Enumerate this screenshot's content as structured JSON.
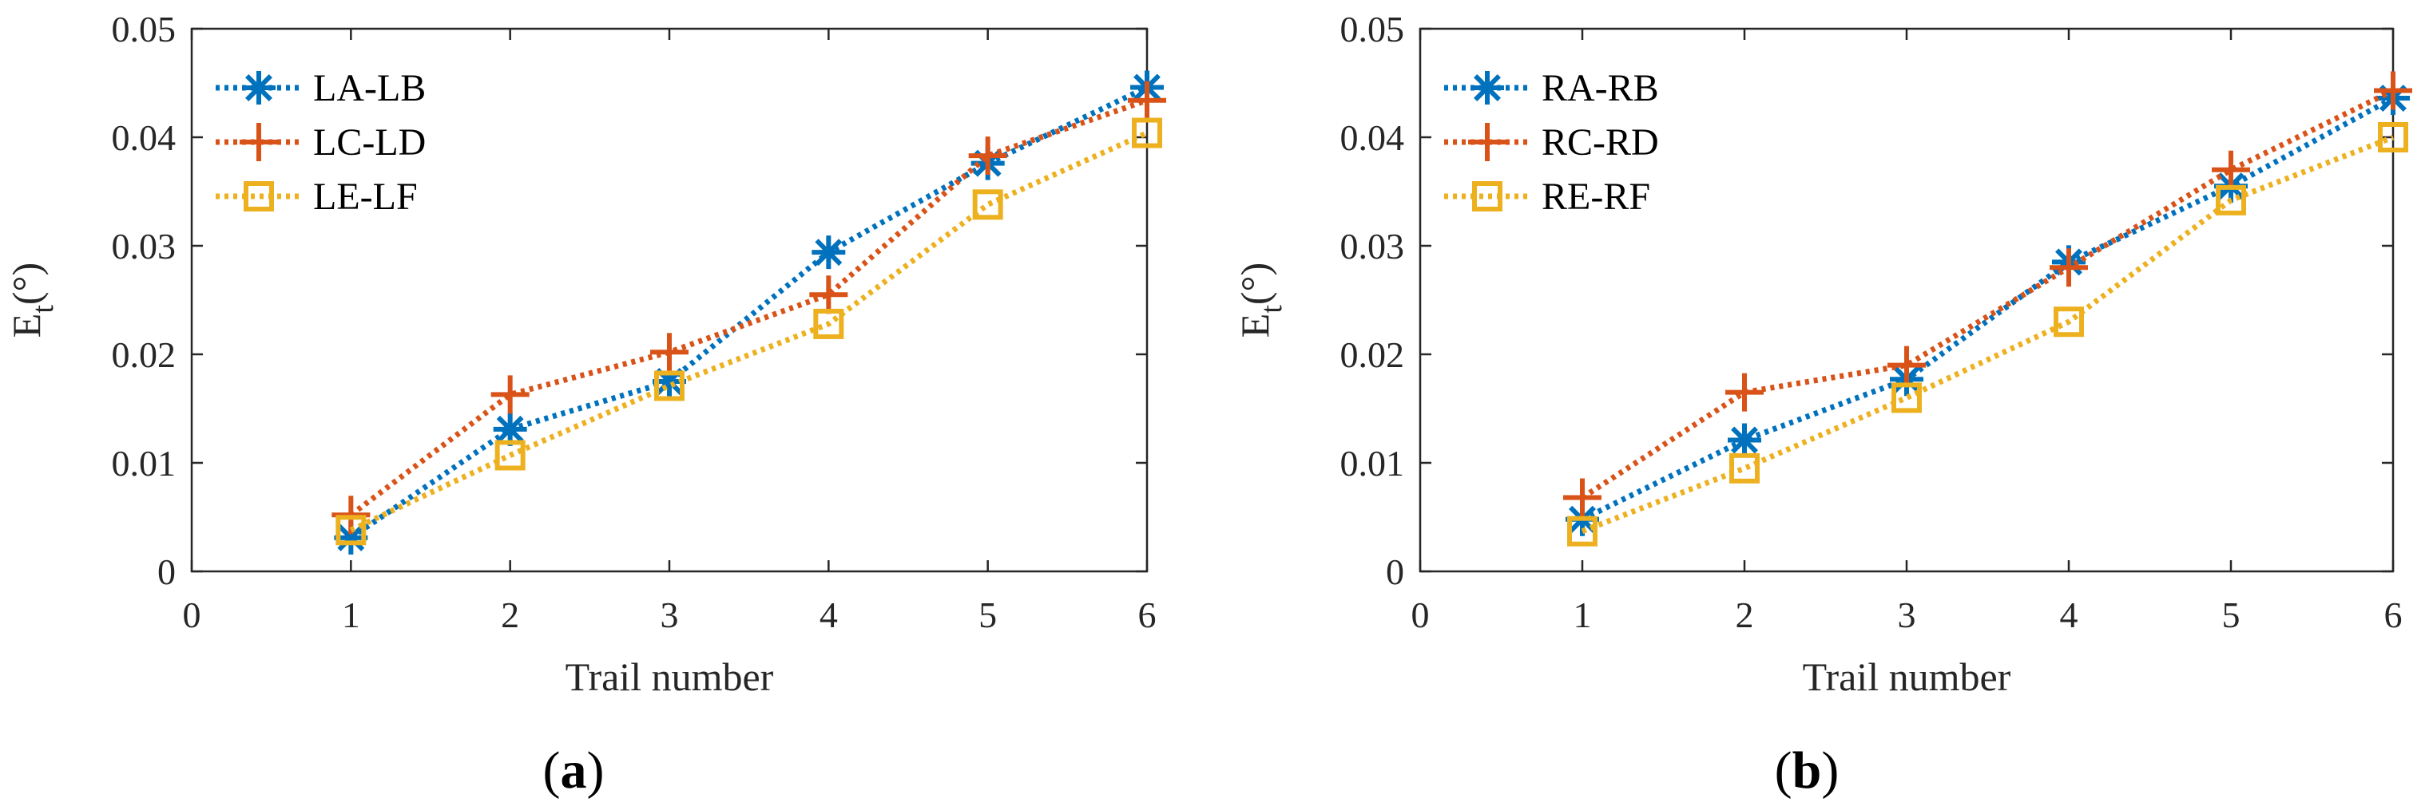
{
  "chart_data": [
    {
      "type": "line",
      "panel_label": {
        "open": "(",
        "letter": "a",
        "close": ")"
      },
      "xlabel": "Trail number",
      "ylabel": {
        "main": "E",
        "sub": "t",
        "suffix": "(°)"
      },
      "xlim": [
        0,
        6
      ],
      "ylim": [
        0,
        0.05
      ],
      "xticks": [
        0,
        1,
        2,
        3,
        4,
        5,
        6
      ],
      "xtick_labels": [
        "0",
        "1",
        "2",
        "3",
        "4",
        "5",
        "6"
      ],
      "yticks": [
        0,
        0.01,
        0.02,
        0.03,
        0.04,
        0.05
      ],
      "ytick_labels": [
        "0",
        "0.01",
        "0.02",
        "0.03",
        "0.04",
        "0.05"
      ],
      "legend_position": "top-left",
      "x": [
        1,
        2,
        3,
        4,
        5,
        6
      ],
      "series": [
        {
          "name": "LA-LB",
          "marker": "asterisk",
          "color": "#0072BD",
          "values": [
            0.0031,
            0.0131,
            0.0175,
            0.0294,
            0.0376,
            0.0446
          ]
        },
        {
          "name": "LC-LD",
          "marker": "plus",
          "color": "#D95319",
          "values": [
            0.0052,
            0.0163,
            0.0202,
            0.0255,
            0.0383,
            0.0434
          ]
        },
        {
          "name": "LE-LF",
          "marker": "square",
          "color": "#EDB120",
          "values": [
            0.0038,
            0.0107,
            0.0171,
            0.0228,
            0.0338,
            0.0404
          ]
        }
      ]
    },
    {
      "type": "line",
      "panel_label": {
        "open": "(",
        "letter": "b",
        "close": ")"
      },
      "xlabel": "Trail number",
      "ylabel": {
        "main": "E",
        "sub": "t",
        "suffix": "(°)"
      },
      "xlim": [
        0,
        6
      ],
      "ylim": [
        0,
        0.05
      ],
      "xticks": [
        0,
        1,
        2,
        3,
        4,
        5,
        6
      ],
      "xtick_labels": [
        "0",
        "1",
        "2",
        "3",
        "4",
        "5",
        "6"
      ],
      "yticks": [
        0,
        0.01,
        0.02,
        0.03,
        0.04,
        0.05
      ],
      "ytick_labels": [
        "0",
        "0.01",
        "0.02",
        "0.03",
        "0.04",
        "0.05"
      ],
      "legend_position": "top-left",
      "x": [
        1,
        2,
        3,
        4,
        5,
        6
      ],
      "series": [
        {
          "name": "RA-RB",
          "marker": "asterisk",
          "color": "#0072BD",
          "values": [
            0.0048,
            0.0121,
            0.0177,
            0.0285,
            0.0355,
            0.0436
          ]
        },
        {
          "name": "RC-RD",
          "marker": "plus",
          "color": "#D95319",
          "values": [
            0.0068,
            0.0165,
            0.019,
            0.028,
            0.037,
            0.0443
          ]
        },
        {
          "name": "RE-RF",
          "marker": "square",
          "color": "#EDB120",
          "values": [
            0.0037,
            0.0095,
            0.016,
            0.023,
            0.0342,
            0.04
          ]
        }
      ]
    }
  ]
}
